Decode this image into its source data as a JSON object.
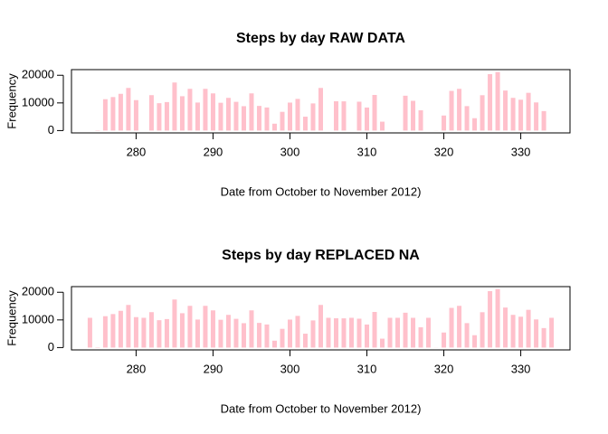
{
  "chart_data": [
    {
      "type": "bar",
      "title": "Steps by day RAW DATA",
      "x_label": "Date from October to November 2012)",
      "y_label": "Frequency",
      "color": "#ffc0cb",
      "x": [
        274,
        275,
        276,
        277,
        278,
        279,
        280,
        281,
        282,
        283,
        284,
        285,
        286,
        287,
        288,
        289,
        290,
        291,
        292,
        293,
        294,
        295,
        296,
        297,
        298,
        299,
        300,
        301,
        302,
        303,
        304,
        305,
        306,
        307,
        308,
        309,
        310,
        311,
        312,
        313,
        314,
        315,
        316,
        317,
        318,
        319,
        320,
        321,
        322,
        323,
        324,
        325,
        326,
        327,
        328,
        329,
        330,
        331,
        332,
        333,
        334
      ],
      "values": [
        0,
        126,
        11352,
        12116,
        13294,
        15420,
        11015,
        0,
        12811,
        9900,
        10304,
        17382,
        12426,
        15098,
        10139,
        15084,
        13452,
        10056,
        11829,
        10395,
        8821,
        13460,
        8918,
        8355,
        2492,
        6778,
        10119,
        11458,
        5018,
        9819,
        15414,
        0,
        10600,
        10571,
        0,
        10439,
        8334,
        12883,
        3219,
        0,
        0,
        12608,
        10765,
        7336,
        0,
        41,
        5441,
        14339,
        15110,
        8841,
        4472,
        12787,
        20427,
        21194,
        14478,
        11834,
        11162,
        13646,
        10183,
        7047,
        0
      ],
      "xlim": [
        271.6,
        336.4
      ],
      "ylim": [
        -848,
        22042
      ],
      "xticks": [
        280,
        290,
        300,
        310,
        320,
        330
      ],
      "yticks": [
        0,
        10000,
        20000
      ]
    },
    {
      "type": "bar",
      "title": "Steps by day REPLACED NA",
      "x_label": "Date from October to November 2012)",
      "y_label": "Frequency",
      "color": "#ffc0cb",
      "x": [
        274,
        275,
        276,
        277,
        278,
        279,
        280,
        281,
        282,
        283,
        284,
        285,
        286,
        287,
        288,
        289,
        290,
        291,
        292,
        293,
        294,
        295,
        296,
        297,
        298,
        299,
        300,
        301,
        302,
        303,
        304,
        305,
        306,
        307,
        308,
        309,
        310,
        311,
        312,
        313,
        314,
        315,
        316,
        317,
        318,
        319,
        320,
        321,
        322,
        323,
        324,
        325,
        326,
        327,
        328,
        329,
        330,
        331,
        332,
        333,
        334
      ],
      "values": [
        10766,
        126,
        11352,
        12116,
        13294,
        15420,
        11015,
        10766,
        12811,
        9900,
        10304,
        17382,
        12426,
        15098,
        10139,
        15084,
        13452,
        10056,
        11829,
        10395,
        8821,
        13460,
        8918,
        8355,
        2492,
        6778,
        10119,
        11458,
        5018,
        9819,
        15414,
        10766,
        10600,
        10571,
        10766,
        10439,
        8334,
        12883,
        3219,
        10766,
        10766,
        12608,
        10765,
        7336,
        10766,
        41,
        5441,
        14339,
        15110,
        8841,
        4472,
        12787,
        20427,
        21194,
        14478,
        11834,
        11162,
        13646,
        10183,
        7047,
        10766
      ],
      "xlim": [
        271.6,
        336.4
      ],
      "ylim": [
        -848,
        22042
      ],
      "xticks": [
        280,
        290,
        300,
        310,
        320,
        330
      ],
      "yticks": [
        0,
        10000,
        20000
      ]
    }
  ]
}
